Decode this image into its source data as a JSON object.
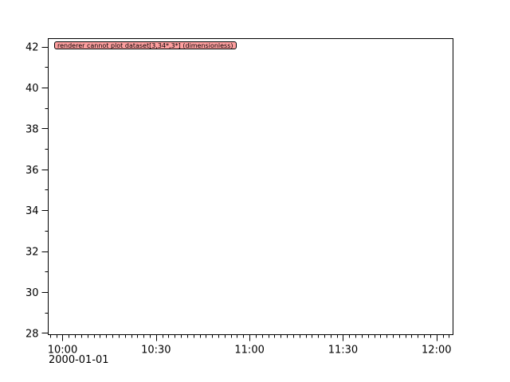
{
  "chart_data": {
    "type": "line",
    "title": "",
    "xlabel": "",
    "ylabel": "",
    "x_axis": {
      "type": "time",
      "range": [
        "2000-01-01 09:55:24",
        "2000-01-01 12:05:18"
      ],
      "major_ticks": [
        "10:00",
        "10:30",
        "11:00",
        "11:30",
        "12:00"
      ],
      "major_tick_minutes": [
        0,
        30,
        60,
        90,
        120
      ],
      "minor_tick_interval_minutes": 2,
      "date_label": "2000-01-01"
    },
    "y_axis": {
      "range": [
        27.92,
        42.39
      ],
      "major_ticks": [
        28,
        30,
        32,
        34,
        36,
        38,
        40,
        42
      ],
      "minor_tick_interval": 1
    },
    "series": [],
    "grid": false,
    "annotation": {
      "text": "renderer cannot plot dataset[3,34*,3*] (dimensionless)",
      "background": "#ffa0a0",
      "placement": "top-left"
    }
  }
}
